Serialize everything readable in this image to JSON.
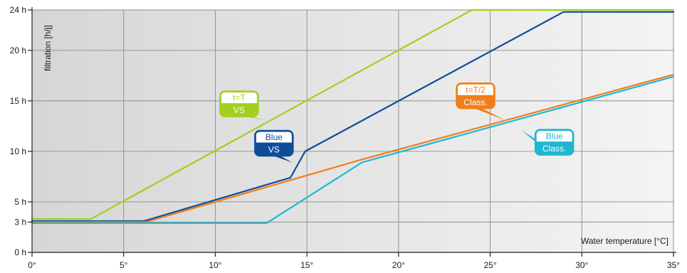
{
  "chart_data": {
    "type": "line",
    "title": "",
    "xlabel": "Water temperature [°C]",
    "ylabel": "filtration [h/j]",
    "xlim": [
      0,
      35
    ],
    "ylim": [
      0,
      24
    ],
    "grid": true,
    "x_ticks": [
      {
        "value": 0,
        "label": "0°"
      },
      {
        "value": 5,
        "label": "5°"
      },
      {
        "value": 10,
        "label": "10°"
      },
      {
        "value": 15,
        "label": "15°"
      },
      {
        "value": 20,
        "label": "20°"
      },
      {
        "value": 25,
        "label": "25°"
      },
      {
        "value": 30,
        "label": "30°"
      },
      {
        "value": 35,
        "label": "35°"
      }
    ],
    "y_ticks": [
      {
        "value": 0,
        "label": "0 h"
      },
      {
        "value": 3,
        "label": "3 h"
      },
      {
        "value": 5,
        "label": "5 h"
      },
      {
        "value": 10,
        "label": "10 h"
      },
      {
        "value": 15,
        "label": "15 h"
      },
      {
        "value": 20,
        "label": "20 h"
      },
      {
        "value": 24,
        "label": "24 h"
      }
    ],
    "series": [
      {
        "key": "tt-vs",
        "color": "#a3cf1e",
        "points": [
          [
            0,
            3.3
          ],
          [
            3.2,
            3.3
          ],
          [
            24,
            24
          ],
          [
            35,
            24
          ]
        ]
      },
      {
        "key": "blue-vs",
        "color": "#0f4c9a",
        "points": [
          [
            0,
            3.1
          ],
          [
            6.1,
            3.1
          ],
          [
            14.1,
            7.4
          ],
          [
            14.9,
            10
          ],
          [
            29,
            23.8
          ],
          [
            35,
            23.8
          ]
        ]
      },
      {
        "key": "tt2-class",
        "color": "#f07e1a",
        "points": [
          [
            0,
            3
          ],
          [
            6.2,
            3
          ],
          [
            18,
            9.2
          ],
          [
            35,
            17.6
          ]
        ]
      },
      {
        "key": "blue-class",
        "color": "#1fb7cf",
        "points": [
          [
            0,
            2.9
          ],
          [
            12.8,
            2.9
          ],
          [
            18,
            8.9
          ],
          [
            35,
            17.4
          ]
        ]
      }
    ],
    "annotations": [
      {
        "series": "tt-vs",
        "line1": "t=T",
        "line2": "VS",
        "color": "#a3cf1e",
        "at": [
          11.3,
          14.7
        ],
        "pointer": [
          12.8,
          13.1
        ]
      },
      {
        "series": "blue-vs",
        "line1": "Blue",
        "line2": "VS",
        "color": "#0f4c9a",
        "at": [
          13.2,
          10.8
        ],
        "pointer": [
          14.2,
          8.9
        ]
      },
      {
        "series": "tt2-class",
        "line1": "t=T/2",
        "line2": "Class.",
        "color": "#f07e1a",
        "at": [
          24.2,
          15.5
        ],
        "pointer": [
          25.8,
          13.1
        ]
      },
      {
        "series": "blue-class",
        "line1": "Blue",
        "line2": "Class.",
        "color": "#1fb7cf",
        "at": [
          28.5,
          10.9
        ],
        "pointer": [
          26.7,
          12.1
        ]
      }
    ]
  }
}
